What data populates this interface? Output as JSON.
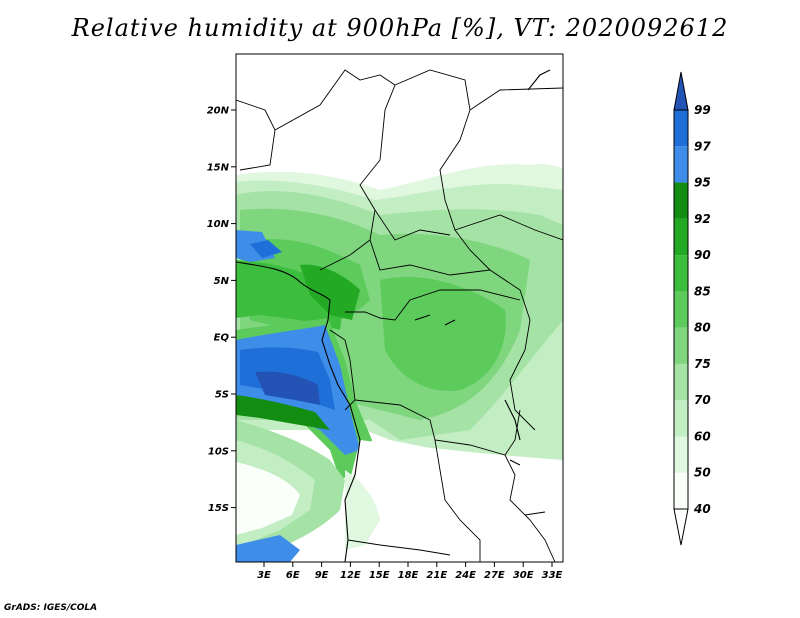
{
  "title": "Relative humidity at 900hPa [%], VT: 2020092612",
  "credit": "GrADS: IGES/COLA",
  "map": {
    "lat_labels": [
      "20N",
      "15N",
      "10N",
      "5N",
      "EQ",
      "5S",
      "10S",
      "15S"
    ],
    "lon_labels": [
      "3E",
      "6E",
      "9E",
      "12E",
      "15E",
      "18E",
      "21E",
      "24E",
      "27E",
      "30E",
      "33E"
    ]
  },
  "colorbar": {
    "labels": [
      "99",
      "97",
      "95",
      "92",
      "90",
      "85",
      "80",
      "75",
      "70",
      "60",
      "50",
      "40"
    ],
    "colors": [
      "#fafffa",
      "#e0f7e0",
      "#c3edc3",
      "#a5e2a5",
      "#7fd67f",
      "#5ccb5c",
      "#3dbd3d",
      "#23a923",
      "#128d12",
      "#3e8de8",
      "#1e6fd8",
      "#2353b5",
      "#ffffff"
    ]
  }
}
